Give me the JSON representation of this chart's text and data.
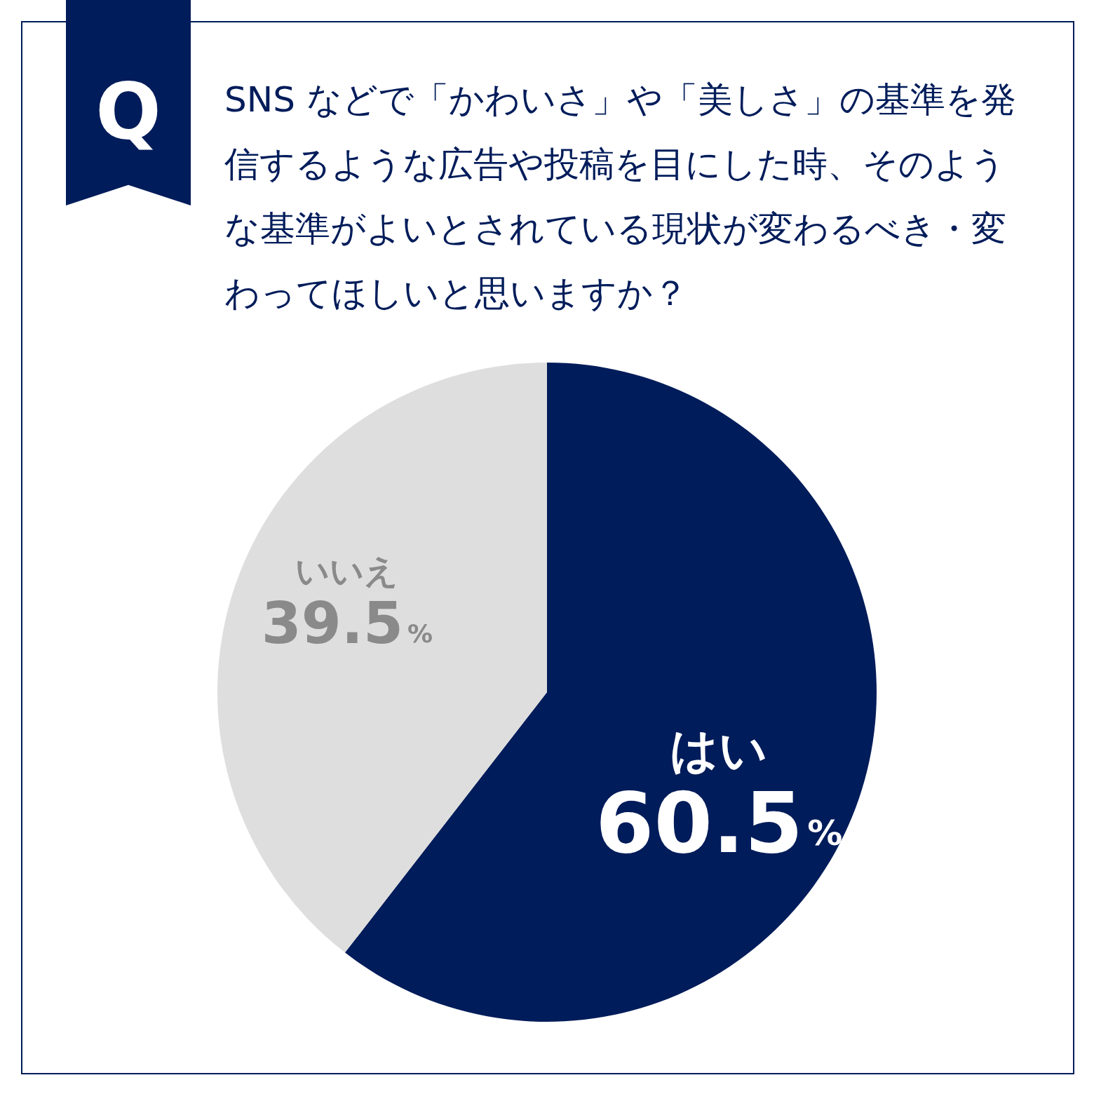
{
  "chart_data": {
    "type": "pie",
    "title": "SNS などで「かわいさ」や「美しさ」の基準を発信するような広告や投稿を目にした時、そのような基準がよいとされている現状が変わるべき・変わってほしいと思いますか？",
    "annotations": [
      "Q"
    ],
    "categories": [
      "はい",
      "いいえ"
    ],
    "values": [
      60.5,
      39.5
    ],
    "colors": [
      "#001c5a",
      "#dedede"
    ],
    "value_labels": [
      "60.5%",
      "39.5%"
    ]
  }
}
